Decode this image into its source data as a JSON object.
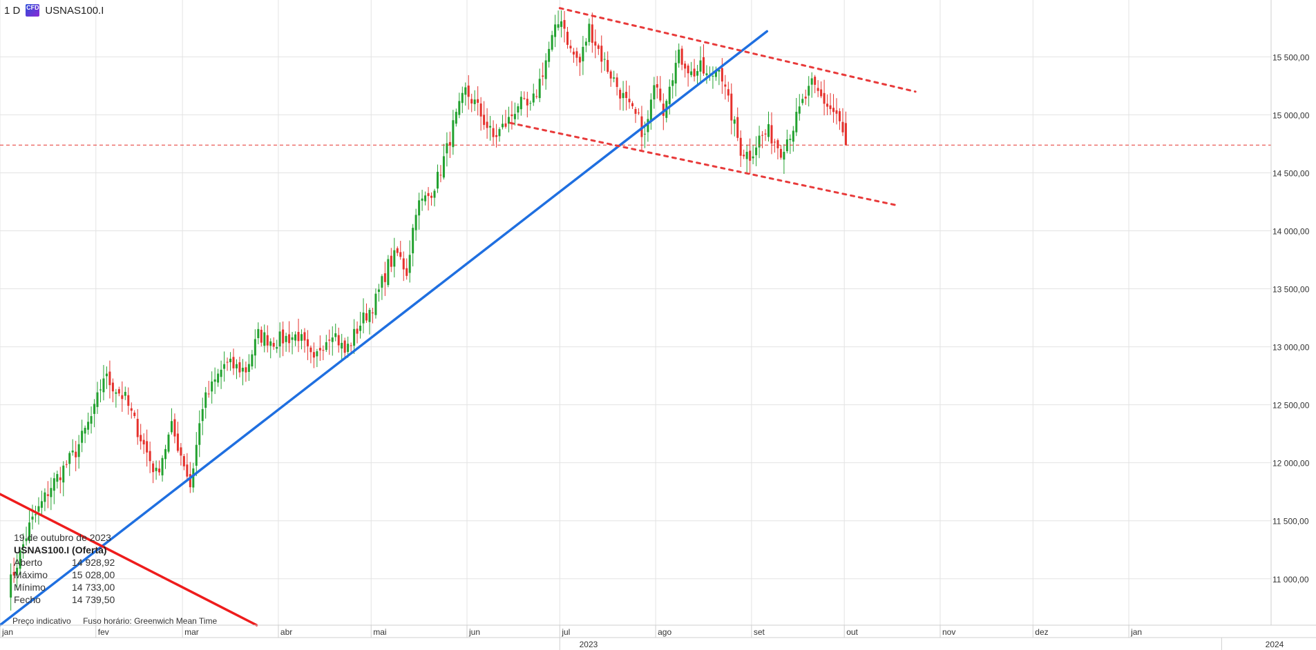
{
  "header": {
    "timeframe": "1 D",
    "badge_text": "CFD",
    "symbol": "USNAS100.I"
  },
  "info_box": {
    "date": "19 de outubro de 2023",
    "title": "USNAS100.I (Oferta)",
    "rows": [
      {
        "label": "Aberto",
        "value": "14 928,92"
      },
      {
        "label": "Máximo",
        "value": "15 028,00"
      },
      {
        "label": "Mínimo",
        "value": "14 733,00"
      },
      {
        "label": "Fecho",
        "value": "14 739,50"
      }
    ]
  },
  "footer": {
    "price_type": "Preço indicativo",
    "timezone": "Fuso horário: Greenwich Mean Time"
  },
  "chart_data": {
    "type": "candlestick",
    "y_ticks": [
      11000,
      11500,
      12000,
      12500,
      13000,
      13500,
      14000,
      14500,
      15000,
      15500
    ],
    "y_tick_labels": [
      "11 000,00",
      "11 500,00",
      "12 000,00",
      "12 500,00",
      "13 000,00",
      "13 500,00",
      "14 000,00",
      "14 500,00",
      "15 000,00",
      "15 500,00"
    ],
    "ylim": [
      10600,
      15990
    ],
    "current_price": 14739.5,
    "current_price_label": "14 739,50",
    "month_labels": [
      "jan",
      "fev",
      "mar",
      "abr",
      "mai",
      "jun",
      "jul",
      "ago",
      "set",
      "out",
      "nov",
      "dez",
      "jan"
    ],
    "month_days": [
      0,
      31,
      59,
      90,
      120,
      151,
      181,
      212,
      243,
      273,
      304,
      334,
      365
    ],
    "year_labels": [
      {
        "text": "2023",
        "day": 181
      },
      {
        "text": "2024",
        "day": 395
      }
    ],
    "xlim_days": [
      0,
      411
    ],
    "close_waypoints": [
      [
        2,
        10900
      ],
      [
        9,
        11450
      ],
      [
        16,
        11800
      ],
      [
        24,
        12100
      ],
      [
        30,
        12450
      ],
      [
        33,
        12750
      ],
      [
        40,
        12550
      ],
      [
        46,
        12150
      ],
      [
        50,
        11900
      ],
      [
        55,
        12300
      ],
      [
        59,
        12000
      ],
      [
        61,
        11800
      ],
      [
        65,
        12500
      ],
      [
        72,
        12850
      ],
      [
        79,
        12800
      ],
      [
        83,
        13100
      ],
      [
        88,
        13050
      ],
      [
        96,
        13100
      ],
      [
        101,
        12850
      ],
      [
        103,
        13000
      ],
      [
        107,
        13150
      ],
      [
        111,
        12950
      ],
      [
        116,
        13200
      ],
      [
        121,
        13400
      ],
      [
        125,
        13700
      ],
      [
        128,
        13800
      ],
      [
        131,
        13650
      ],
      [
        134,
        14200
      ],
      [
        138,
        14300
      ],
      [
        141,
        14450
      ],
      [
        144,
        14700
      ],
      [
        146,
        14900
      ],
      [
        150,
        15200
      ],
      [
        153,
        15100
      ],
      [
        156,
        14950
      ],
      [
        159,
        14800
      ],
      [
        164,
        14950
      ],
      [
        167,
        15100
      ],
      [
        171,
        15050
      ],
      [
        173,
        15200
      ],
      [
        178,
        15650
      ],
      [
        181,
        15850
      ],
      [
        184,
        15550
      ],
      [
        187,
        15450
      ],
      [
        190,
        15750
      ],
      [
        194,
        15500
      ],
      [
        197,
        15350
      ],
      [
        200,
        15200
      ],
      [
        203,
        15050
      ],
      [
        206,
        14950
      ],
      [
        208,
        14800
      ],
      [
        210,
        15100
      ],
      [
        212,
        15300
      ],
      [
        214,
        15050
      ],
      [
        216,
        15300
      ],
      [
        219,
        15500
      ],
      [
        221,
        15450
      ],
      [
        223,
        15350
      ],
      [
        226,
        15400
      ],
      [
        229,
        15300
      ],
      [
        232,
        15450
      ],
      [
        234,
        15200
      ],
      [
        237,
        14900
      ],
      [
        239,
        14700
      ],
      [
        242,
        14650
      ],
      [
        245,
        14800
      ],
      [
        248,
        14850
      ],
      [
        252,
        14700
      ],
      [
        256,
        14900
      ],
      [
        259,
        15100
      ],
      [
        262,
        15250
      ],
      [
        265,
        15150
      ],
      [
        268,
        15050
      ],
      [
        270,
        15000
      ],
      [
        273,
        14739.5
      ]
    ],
    "annotations": [
      {
        "name": "long-term-trendline",
        "color": "#1f6fe0",
        "style": "solid",
        "points": [
          [
            0,
            10600
          ],
          [
            248,
            15720
          ]
        ]
      },
      {
        "name": "descending-channel-upper",
        "color": "#e83a3a",
        "style": "dashed",
        "points": [
          [
            181,
            15920
          ],
          [
            296,
            15200
          ]
        ]
      },
      {
        "name": "descending-channel-lower",
        "color": "#e83a3a",
        "style": "dashed",
        "points": [
          [
            165,
            14930
          ],
          [
            290,
            14220
          ]
        ]
      },
      {
        "name": "red-descending-line",
        "color": "#ee1c1c",
        "style": "solid",
        "points": [
          [
            0,
            11730
          ],
          [
            83,
            10600
          ]
        ]
      }
    ],
    "up_color": "#22a12f",
    "down_color": "#e5312c",
    "grid": true
  }
}
